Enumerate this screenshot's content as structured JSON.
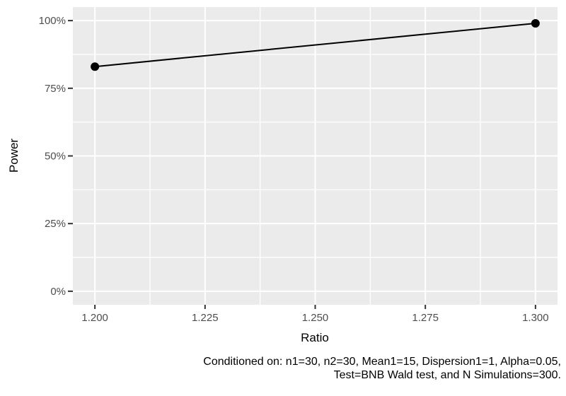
{
  "chart_data": {
    "type": "line",
    "xlabel": "Ratio",
    "ylabel": "Power",
    "series": [
      {
        "x": [
          1.2,
          1.3
        ],
        "y": [
          83,
          99
        ]
      }
    ],
    "x_ticks": {
      "values": [
        1.2,
        1.225,
        1.25,
        1.275,
        1.3
      ],
      "labels": [
        "1.200",
        "1.225",
        "1.250",
        "1.275",
        "1.300"
      ]
    },
    "y_ticks": {
      "values": [
        0,
        25,
        50,
        75,
        100
      ],
      "labels": [
        "0%",
        "25%",
        "50%",
        "75%",
        "100%"
      ]
    },
    "x_minor": [
      1.2125,
      1.2375,
      1.2625,
      1.2875
    ],
    "y_minor": [
      12.5,
      37.5,
      62.5,
      87.5
    ],
    "xlim": [
      1.195,
      1.305
    ],
    "ylim": [
      -5,
      105
    ],
    "grid": "white major and minor gridlines on gray panel",
    "legend_position": "none",
    "caption": [
      "Conditioned on: n1=30, n2=30, Mean1=15, Dispersion1=1, Alpha=0.05,",
      "Test=BNB Wald test, and N Simulations=300."
    ],
    "colors": {
      "background": "#FFFFFF",
      "panel_background": "#EBEBEB",
      "gridline": "#FFFFFF",
      "series_line": "#000000",
      "data_point": "#000000",
      "tick_mark": "#333333",
      "tick_label": "#4D4D4D",
      "axis_title": "#000000",
      "caption_text": "#000000"
    }
  }
}
